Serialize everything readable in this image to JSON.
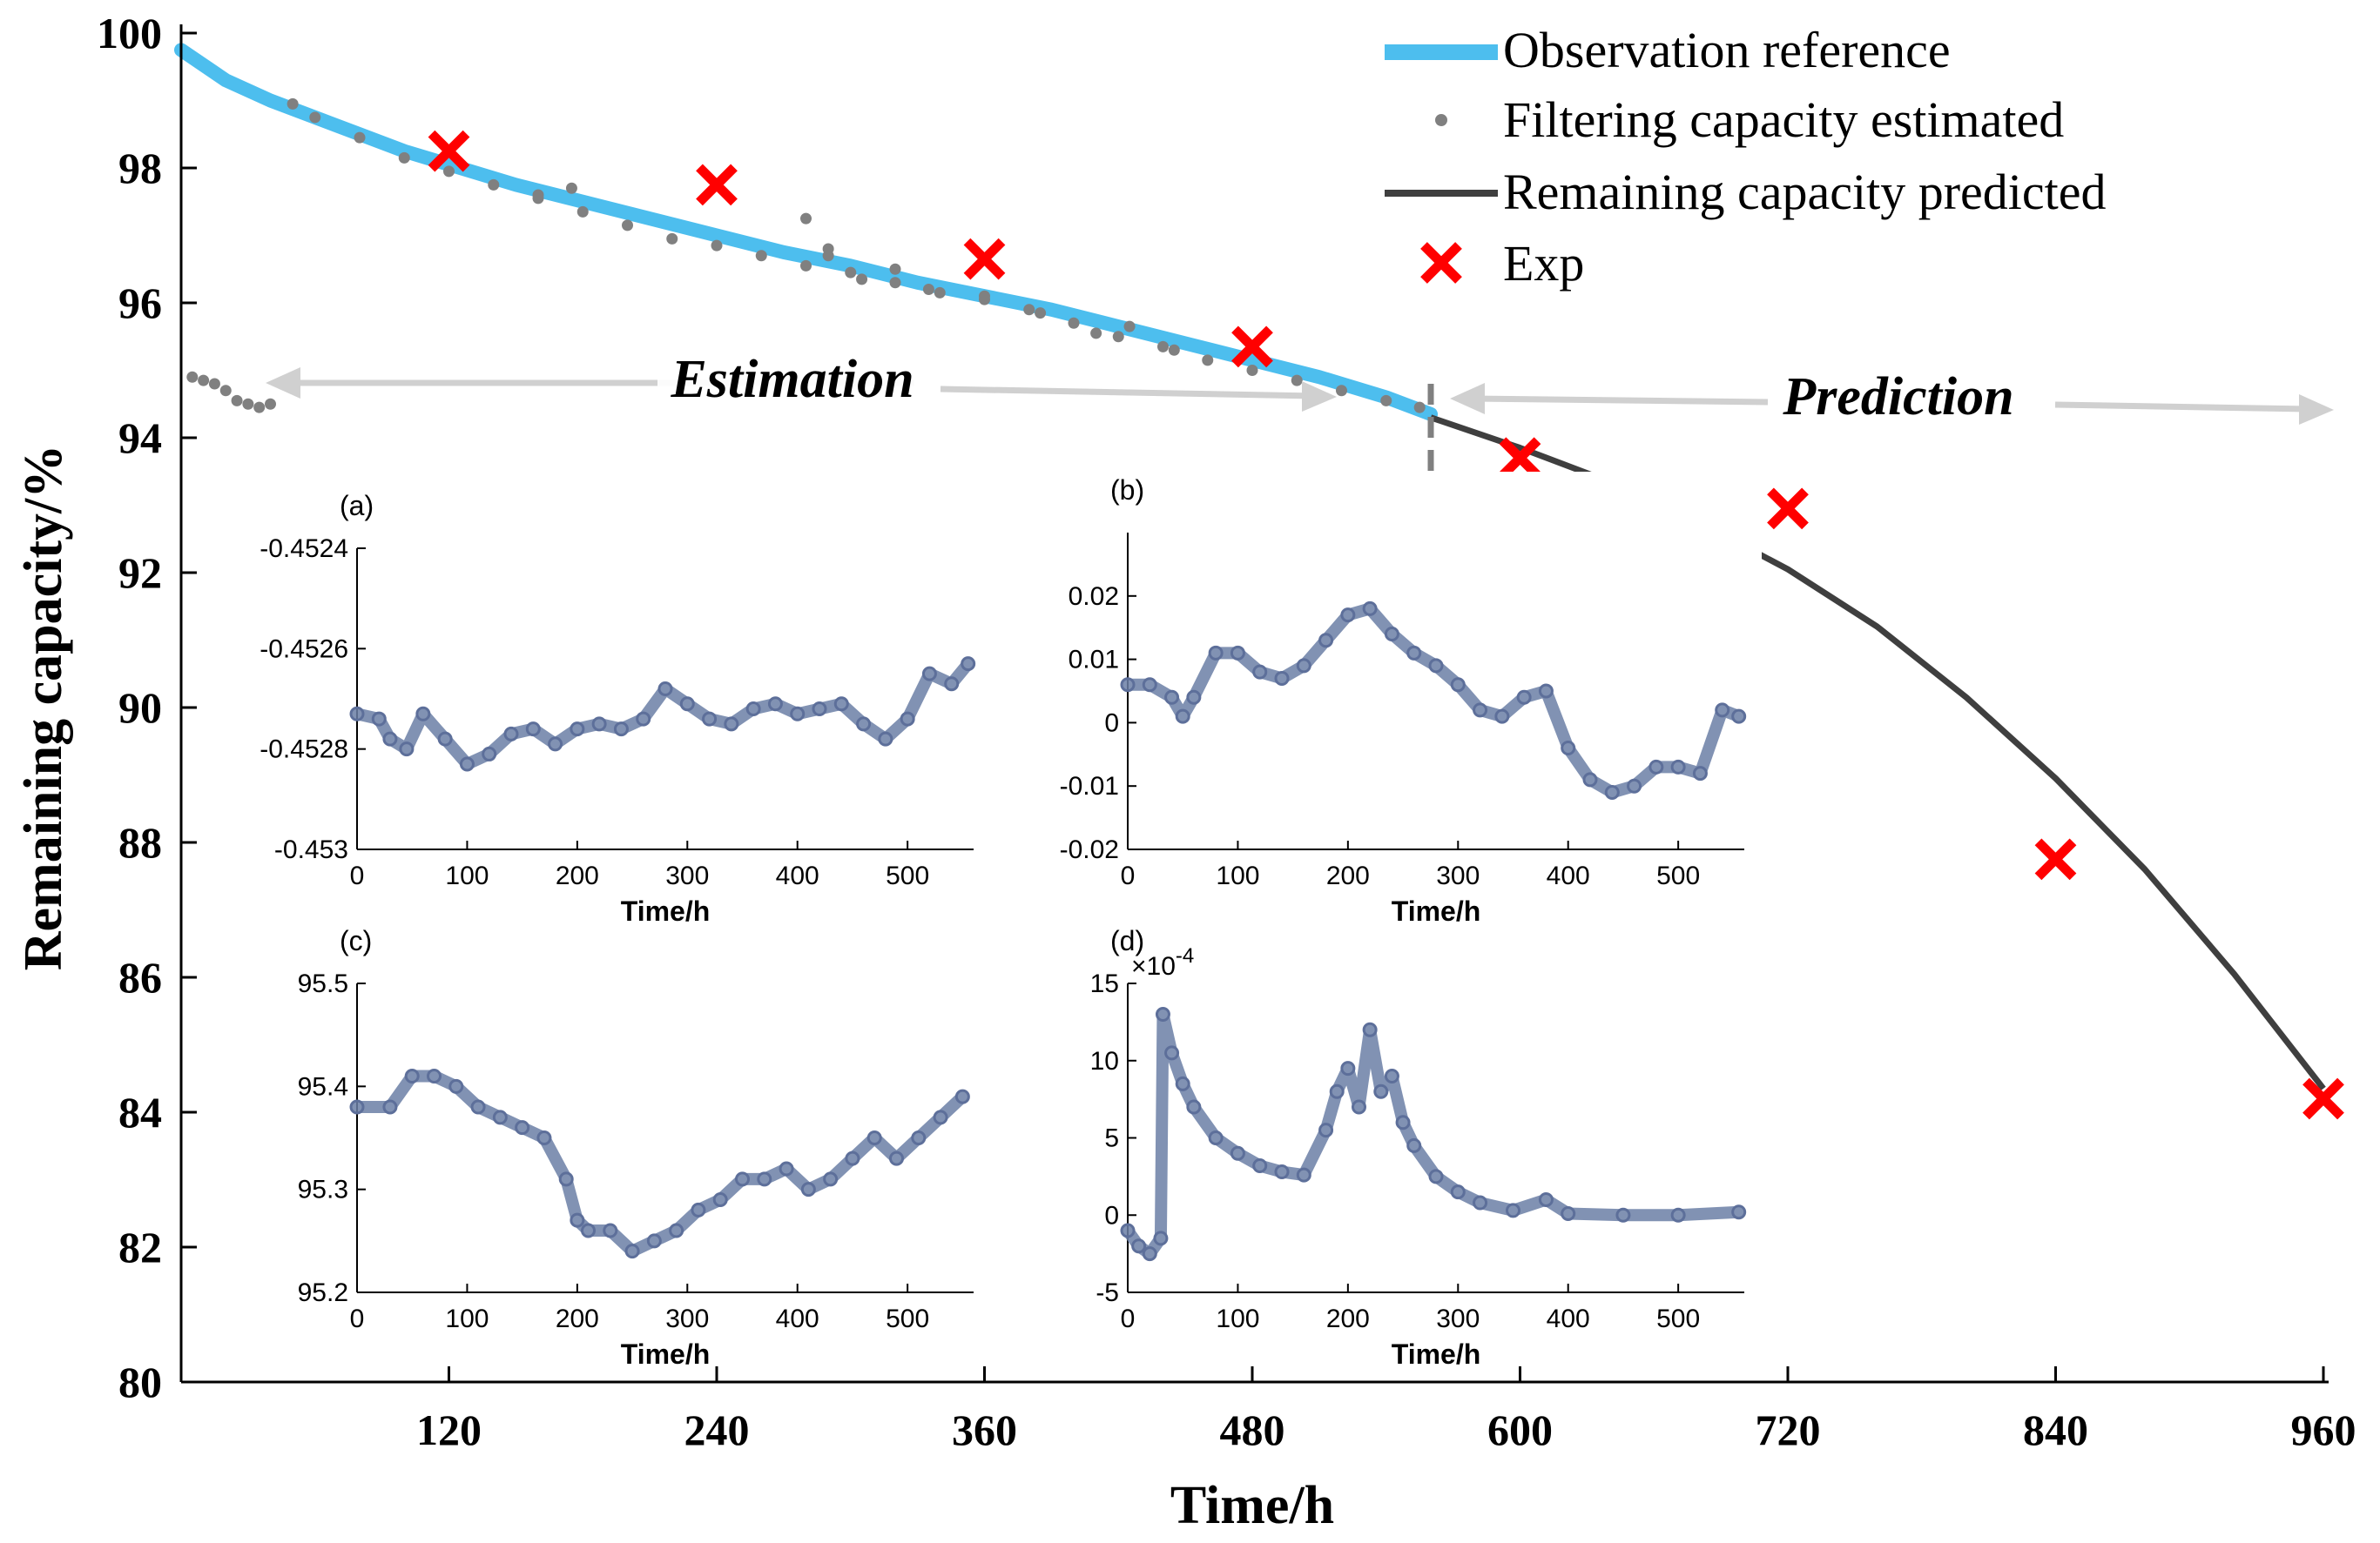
{
  "chart_data": {
    "main": {
      "type": "line",
      "xlabel": "Time/h",
      "ylabel": "Remaining capacity/%",
      "xlim": [
        0,
        960
      ],
      "ylim": [
        80,
        100
      ],
      "xticks": [
        120,
        240,
        360,
        480,
        600,
        720,
        840,
        960
      ],
      "yticks": [
        80,
        82,
        84,
        86,
        88,
        90,
        92,
        94,
        96,
        98,
        100
      ],
      "legend": [
        {
          "key": "observation",
          "label": "Observation reference"
        },
        {
          "key": "filtering",
          "label": "Filtering capacity estimated"
        },
        {
          "key": "predicted",
          "label": "Remaining capacity predicted"
        },
        {
          "key": "exp",
          "label": "Exp"
        }
      ],
      "legend_position": "top-right",
      "annotations": {
        "estimation": "Estimation",
        "prediction": "Prediction"
      },
      "split_time": 560,
      "observation_reference": {
        "x": [
          0,
          20,
          40,
          60,
          80,
          100,
          120,
          150,
          180,
          210,
          240,
          270,
          300,
          330,
          360,
          390,
          420,
          450,
          480,
          510,
          540,
          560
        ],
        "y": [
          99.75,
          99.3,
          99.0,
          98.75,
          98.5,
          98.25,
          98.05,
          97.75,
          97.5,
          97.25,
          97.0,
          96.75,
          96.55,
          96.3,
          96.1,
          95.9,
          95.65,
          95.4,
          95.15,
          94.9,
          94.6,
          94.35
        ]
      },
      "filtering_estimated": {
        "x": [
          5,
          10,
          15,
          20,
          25,
          30,
          35,
          40,
          50,
          60,
          80,
          100,
          120,
          140,
          160,
          180,
          200,
          220,
          240,
          260,
          280,
          300,
          320,
          340,
          360,
          380,
          400,
          420,
          440,
          460,
          480,
          500,
          520,
          540,
          555,
          160,
          175,
          280,
          290,
          290,
          305,
          320,
          335,
          360,
          385,
          410,
          425,
          445
        ],
        "y": [
          94.9,
          94.85,
          94.8,
          94.7,
          94.55,
          94.5,
          94.45,
          94.5,
          98.95,
          98.75,
          98.45,
          98.15,
          97.95,
          97.75,
          97.55,
          97.35,
          97.15,
          96.95,
          96.85,
          96.7,
          96.55,
          96.45,
          96.3,
          96.15,
          96.05,
          95.9,
          95.7,
          95.5,
          95.35,
          95.15,
          95.0,
          94.85,
          94.7,
          94.55,
          94.45,
          97.6,
          97.7,
          97.25,
          96.7,
          96.8,
          96.35,
          96.5,
          96.2,
          96.1,
          95.85,
          95.55,
          95.65,
          95.3
        ]
      },
      "remaining_predicted": {
        "x": [
          560,
          600,
          640,
          680,
          720,
          760,
          800,
          840,
          880,
          920,
          960
        ],
        "y": [
          94.3,
          93.85,
          93.35,
          92.75,
          92.05,
          91.2,
          90.15,
          88.95,
          87.6,
          86.05,
          84.35
        ]
      },
      "exp": {
        "x": [
          120,
          240,
          360,
          480,
          600,
          720,
          840,
          960
        ],
        "y": [
          98.25,
          97.75,
          96.65,
          95.35,
          93.7,
          92.95,
          87.75,
          84.2
        ]
      }
    },
    "insets": [
      {
        "panel": "(a)",
        "xlabel": "Time/h",
        "xlim": [
          0,
          560
        ],
        "ylim": [
          -0.453,
          -0.4524
        ],
        "xticks": [
          "0",
          "100",
          "200",
          "300",
          "400",
          "500"
        ],
        "yticks": [
          "-0.453",
          "-0.4528",
          "-0.4526",
          "-0.4524"
        ],
        "ytick_values": [
          -0.453,
          -0.4528,
          -0.4526,
          -0.4524
        ],
        "exponent": "",
        "x": [
          0,
          20,
          30,
          45,
          60,
          80,
          100,
          120,
          140,
          160,
          180,
          200,
          220,
          240,
          260,
          280,
          300,
          320,
          340,
          360,
          380,
          400,
          420,
          440,
          460,
          480,
          500,
          520,
          540,
          555
        ],
        "y": [
          -0.45273,
          -0.45274,
          -0.45278,
          -0.4528,
          -0.45273,
          -0.45278,
          -0.45283,
          -0.45281,
          -0.45277,
          -0.45276,
          -0.45279,
          -0.45276,
          -0.45275,
          -0.45276,
          -0.45274,
          -0.45268,
          -0.45271,
          -0.45274,
          -0.45275,
          -0.45272,
          -0.45271,
          -0.45273,
          -0.45272,
          -0.45271,
          -0.45275,
          -0.45278,
          -0.45274,
          -0.45265,
          -0.45267,
          -0.45263
        ]
      },
      {
        "panel": "(b)",
        "xlabel": "Time/h",
        "xlim": [
          0,
          560
        ],
        "ylim": [
          -0.02,
          0.03
        ],
        "xticks": [
          "0",
          "100",
          "200",
          "300",
          "400",
          "500"
        ],
        "yticks": [
          "-0.02",
          "-0.01",
          "0",
          "0.01",
          "0.02"
        ],
        "ytick_values": [
          -0.02,
          -0.01,
          0,
          0.01,
          0.02
        ],
        "exponent": "",
        "x": [
          0,
          20,
          40,
          50,
          60,
          80,
          100,
          120,
          140,
          160,
          180,
          200,
          220,
          240,
          260,
          280,
          300,
          320,
          340,
          360,
          380,
          400,
          420,
          440,
          460,
          480,
          500,
          520,
          540,
          555
        ],
        "y": [
          0.006,
          0.006,
          0.004,
          0.001,
          0.004,
          0.011,
          0.011,
          0.008,
          0.007,
          0.009,
          0.013,
          0.017,
          0.018,
          0.014,
          0.011,
          0.009,
          0.006,
          0.002,
          0.001,
          0.004,
          0.005,
          -0.004,
          -0.009,
          -0.011,
          -0.01,
          -0.007,
          -0.007,
          -0.008,
          0.002,
          0.001
        ]
      },
      {
        "panel": "(c)",
        "xlabel": "Time/h",
        "xlim": [
          0,
          560
        ],
        "ylim": [
          95.2,
          95.5
        ],
        "xticks": [
          "0",
          "100",
          "200",
          "300",
          "400",
          "500"
        ],
        "yticks": [
          "95.2",
          "95.3",
          "95.4",
          "95.5"
        ],
        "ytick_values": [
          95.2,
          95.3,
          95.4,
          95.5
        ],
        "exponent": "",
        "x": [
          0,
          30,
          50,
          70,
          90,
          110,
          130,
          150,
          170,
          190,
          200,
          210,
          230,
          250,
          270,
          290,
          310,
          330,
          350,
          370,
          390,
          410,
          430,
          450,
          470,
          490,
          510,
          530,
          550
        ],
        "y": [
          95.38,
          95.38,
          95.41,
          95.41,
          95.4,
          95.38,
          95.37,
          95.36,
          95.35,
          95.31,
          95.27,
          95.26,
          95.26,
          95.24,
          95.25,
          95.26,
          95.28,
          95.29,
          95.31,
          95.31,
          95.32,
          95.3,
          95.31,
          95.33,
          95.35,
          95.33,
          95.35,
          95.37,
          95.39
        ]
      },
      {
        "panel": "(d)",
        "xlabel": "Time/h",
        "xlim": [
          0,
          560
        ],
        "ylim": [
          -5,
          15
        ],
        "xticks": [
          "0",
          "100",
          "200",
          "300",
          "400",
          "500"
        ],
        "yticks": [
          "-5",
          "0",
          "5",
          "10",
          "15"
        ],
        "ytick_values": [
          -5,
          0,
          5,
          10,
          15
        ],
        "exponent": "×10",
        "exponent_power": "-4",
        "x": [
          0,
          10,
          20,
          30,
          32,
          40,
          50,
          60,
          80,
          100,
          120,
          140,
          160,
          180,
          190,
          200,
          210,
          220,
          230,
          240,
          250,
          260,
          280,
          300,
          320,
          350,
          380,
          400,
          450,
          500,
          555
        ],
        "y": [
          -1.0,
          -2.0,
          -2.5,
          -1.5,
          13.0,
          10.5,
          8.5,
          7.0,
          5.0,
          4.0,
          3.2,
          2.8,
          2.6,
          5.5,
          8.0,
          9.5,
          7.0,
          12.0,
          8.0,
          9.0,
          6.0,
          4.5,
          2.5,
          1.5,
          0.8,
          0.3,
          1.0,
          0.1,
          0.0,
          0.0,
          0.2
        ]
      }
    ]
  }
}
